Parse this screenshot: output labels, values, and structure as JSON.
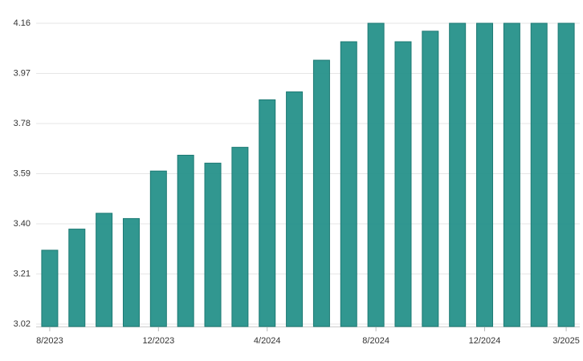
{
  "chart_data": {
    "type": "bar",
    "categories": [
      "8/2023",
      null,
      null,
      null,
      "12/2023",
      null,
      null,
      null,
      "4/2024",
      null,
      null,
      null,
      "8/2024",
      null,
      null,
      null,
      "12/2024",
      null,
      null,
      "3/2025"
    ],
    "values": [
      3.3,
      3.38,
      3.44,
      3.42,
      3.6,
      3.66,
      3.63,
      3.69,
      3.87,
      3.9,
      4.02,
      4.09,
      4.16,
      4.09,
      4.13,
      4.16,
      4.16,
      4.16,
      4.16,
      4.16
    ],
    "color": "#26918a",
    "ylim": [
      3.02,
      4.16
    ],
    "yticks": [
      {
        "value": 3.02,
        "label": "3.02"
      },
      3.21,
      {
        "value": 3.4,
        "label": "3.40"
      },
      3.59,
      3.78,
      3.97,
      4.16
    ],
    "grid": true
  }
}
